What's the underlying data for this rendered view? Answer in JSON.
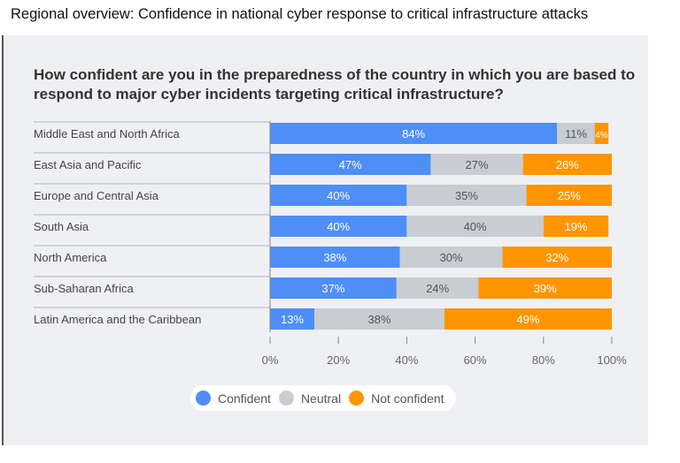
{
  "header": {
    "title": "Regional overview: Confidence in national cyber response to critical infrastructure attacks"
  },
  "chart_data": {
    "type": "bar",
    "orientation": "horizontal-stacked",
    "title": "How confident are you in the preparedness of the country in which you are based to respond to major cyber incidents targeting critical infrastructure?",
    "categories": [
      "Middle East and North Africa",
      "East Asia and Pacific",
      "Europe and Central Asia",
      "South Asia",
      "North America",
      "Sub-Saharan Africa",
      "Latin America and the Caribbean"
    ],
    "series": [
      {
        "name": "Confident",
        "color": "#4e8ef7",
        "values": [
          84,
          47,
          40,
          40,
          38,
          37,
          13
        ]
      },
      {
        "name": "Neutral",
        "color": "#c8cdd3",
        "values": [
          11,
          27,
          35,
          40,
          30,
          24,
          38
        ]
      },
      {
        "name": "Not confident",
        "color": "#ff9500",
        "values": [
          4,
          26,
          25,
          19,
          32,
          39,
          49
        ]
      }
    ],
    "xlim": [
      0,
      100
    ],
    "xticks": [
      "0%",
      "20%",
      "40%",
      "60%",
      "80%",
      "100%"
    ],
    "legend": "bottom-left",
    "grid": false
  }
}
